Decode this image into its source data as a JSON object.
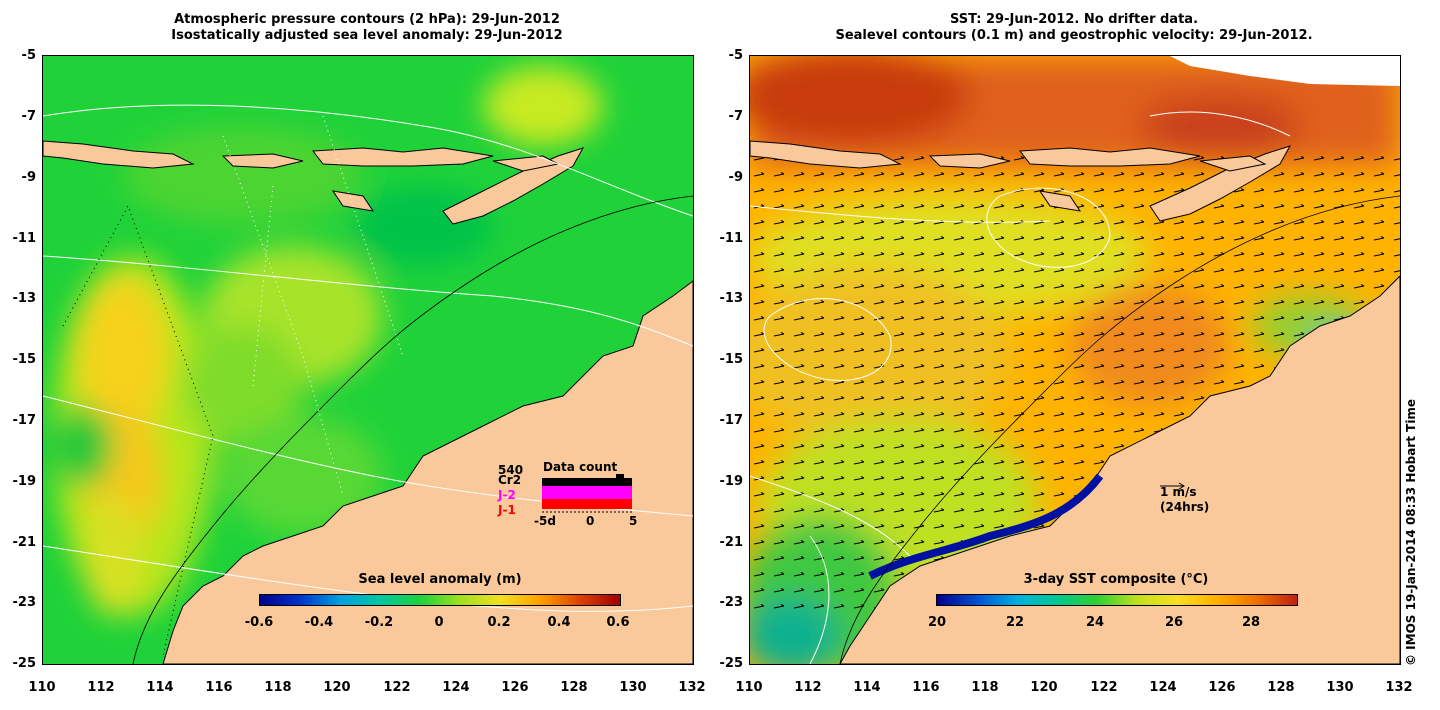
{
  "left_panel": {
    "title_line1": "Atmospheric pressure contours (2 hPa): 29-Jun-2012",
    "title_line2": "Isostatically adjusted sea level anomaly: 29-Jun-2012",
    "colorbar_title": "Sea level anomaly (m)",
    "colorbar_ticks": [
      "-0.6",
      "-0.4",
      "-0.2",
      "0",
      "0.2",
      "0.4",
      "0.6"
    ],
    "data_count": {
      "title": "Data count",
      "value": "540",
      "legend": [
        {
          "label": "Cr2",
          "color": "#000000"
        },
        {
          "label": "J-2",
          "color": "#ff00ff"
        },
        {
          "label": "J-1",
          "color": "#ff0000"
        }
      ],
      "axis_labels": [
        "-5d",
        "0",
        "5"
      ]
    }
  },
  "right_panel": {
    "title_line1": "SST: 29-Jun-2012. No drifter data.",
    "title_line2": "Sealevel contours (0.1 m) and geostrophic velocity: 29-Jun-2012.",
    "colorbar_title": "3-day SST composite (°C)",
    "colorbar_ticks": [
      "20",
      "22",
      "24",
      "26",
      "28"
    ],
    "velocity_scale_label": "1 m/s",
    "velocity_scale_sub": "(24hrs)"
  },
  "axes": {
    "y_ticks": [
      "-5",
      "-7",
      "-9",
      "-11",
      "-13",
      "-15",
      "-17",
      "-19",
      "-21",
      "-23",
      "-25"
    ],
    "x_ticks": [
      "110",
      "112",
      "114",
      "116",
      "118",
      "120",
      "122",
      "124",
      "126",
      "128",
      "130",
      "132"
    ]
  },
  "credit": "© IMOS 19-Jan-2014 08:33 Hobart Time",
  "colors": {
    "land": "#f9c89b",
    "slaMid": "#1fd23a",
    "sstMid": "#ffb300"
  }
}
